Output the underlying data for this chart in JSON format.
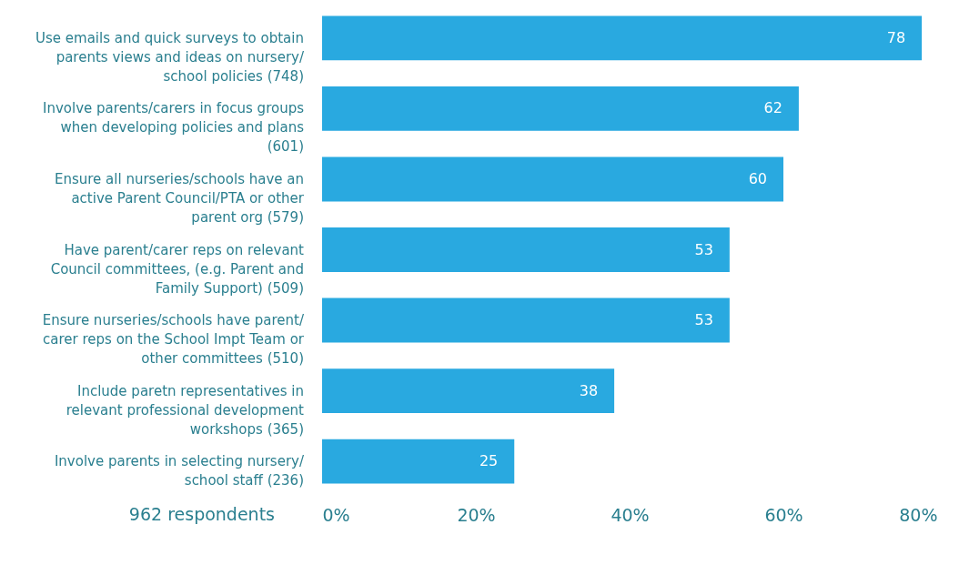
{
  "chart_data": {
    "type": "bar",
    "orientation": "horizontal",
    "categories": [
      "Use emails and quick surveys to obtain parents views and ideas on nursery/ school policies (748)",
      "Involve parents/carers in focus groups when developing policies and plans (601)",
      "Ensure all nurseries/schools have an active Parent Council/PTA or other parent org (579)",
      "Have parent/carer reps on relevant Council committees, (e.g. Parent and Family Support) (509)",
      "Ensure nurseries/schools have parent/ carer reps on the School Impt Team or other committees (510)",
      "Include paretn representatives in relevant professional development workshops (365)",
      "Involve parents in selecting nursery/ school staff (236)"
    ],
    "values": [
      78,
      62,
      60,
      53,
      53,
      38,
      25
    ],
    "color": "#29a9e0",
    "data_labels": true,
    "xlim": [
      0,
      80
    ],
    "xticks": [
      {
        "value": 0,
        "label": "0%"
      },
      {
        "value": 20,
        "label": "20%"
      },
      {
        "value": 40,
        "label": "40%"
      },
      {
        "value": 60,
        "label": "60%"
      },
      {
        "value": 80,
        "label": "80%"
      }
    ],
    "grid": false,
    "annotations": [
      "962 respondents"
    ]
  }
}
